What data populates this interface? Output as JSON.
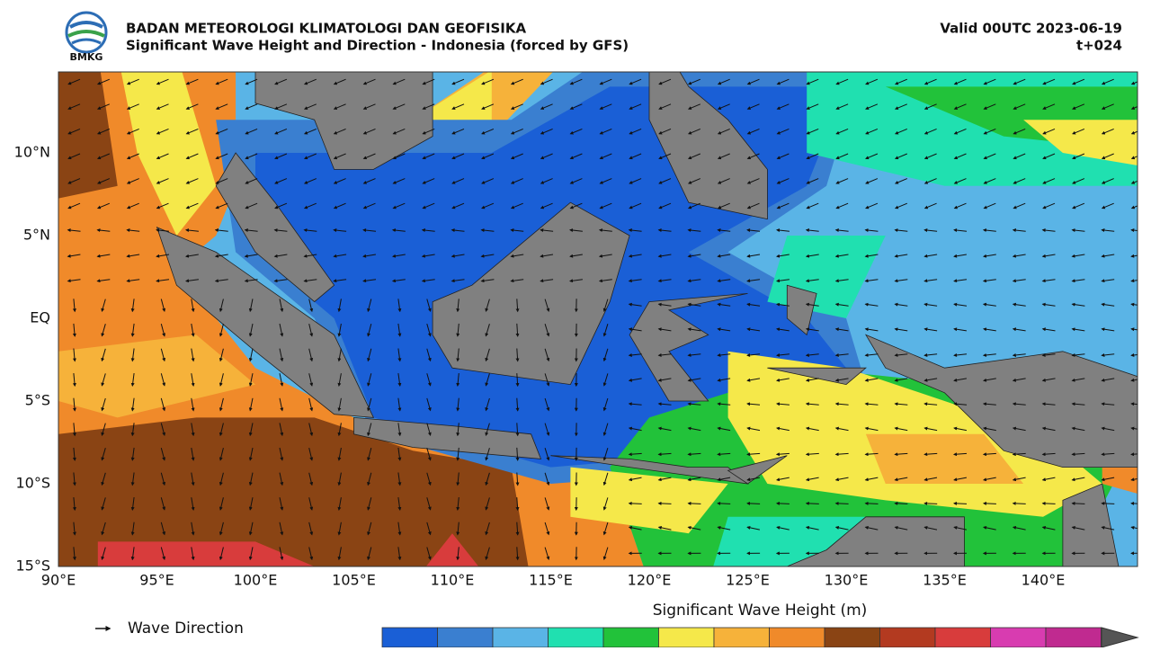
{
  "header": {
    "title": "BADAN METEOROLOGI KLIMATOLOGI DAN GEOFISIKA",
    "subtitle": "Significant Wave Height and Direction - Indonesia (forced by GFS)",
    "valid": "Valid 00UTC 2023-06-19",
    "lead": "t+024",
    "logo_text": "BMKG"
  },
  "map": {
    "lat_labels": [
      "10°N",
      "5°N",
      "EQ",
      "5°S",
      "10°S",
      "15°S"
    ],
    "lon_labels": [
      "90°E",
      "95°E",
      "100°E",
      "105°E",
      "110°E",
      "115°E",
      "120°E",
      "125°E",
      "130°E",
      "135°E",
      "140°E"
    ]
  },
  "legend": {
    "label": "Wave Direction"
  },
  "colorbar": {
    "title": "Significant Wave Height (m)"
  }
}
